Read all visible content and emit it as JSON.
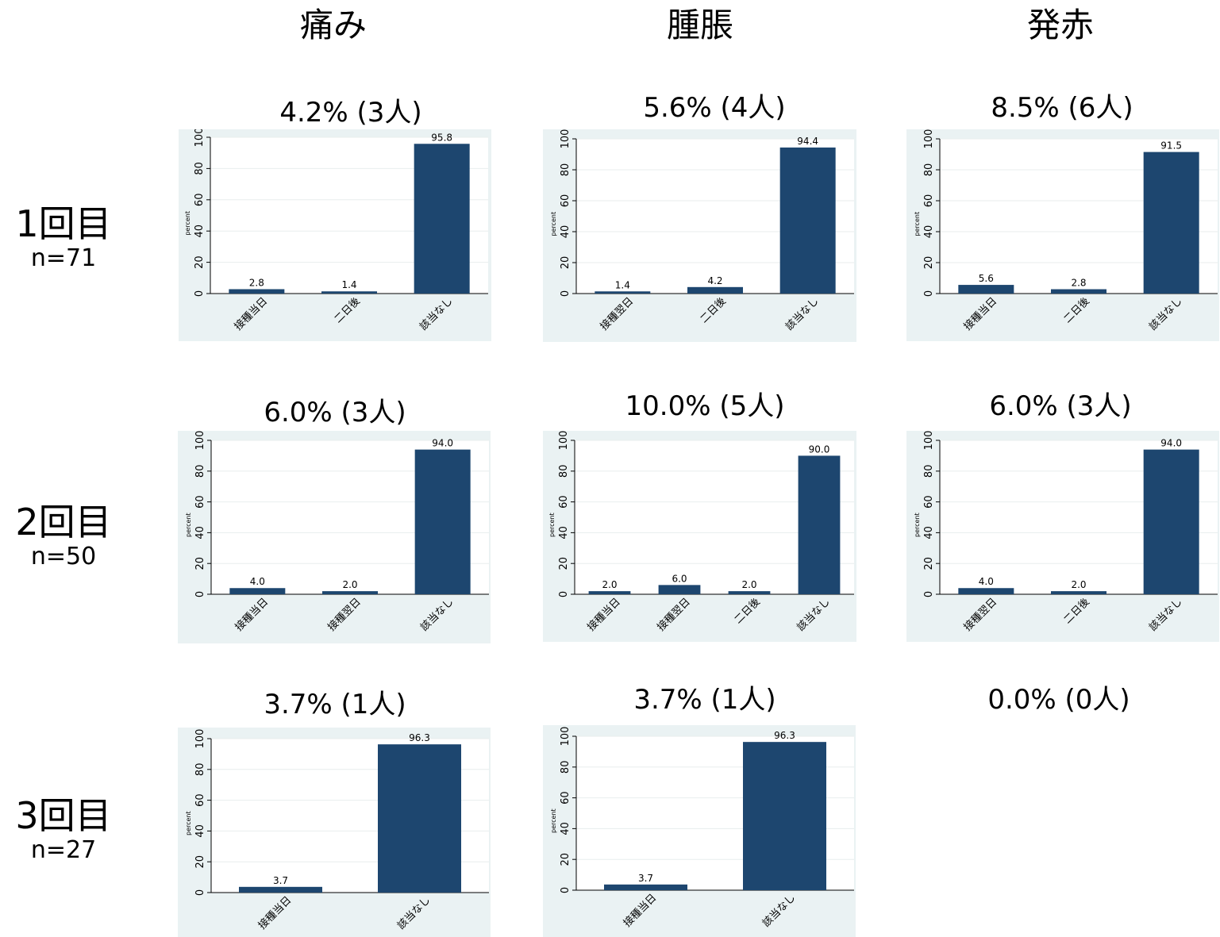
{
  "columns": [
    "痛み",
    "腫脹",
    "発赤"
  ],
  "rows": [
    {
      "dose": "1回目",
      "n": "n=71"
    },
    {
      "dose": "2回目",
      "n": "n=50"
    },
    {
      "dose": "3回目",
      "n": "n=27"
    }
  ],
  "rates": [
    [
      "4.2% (3人)",
      "5.6% (4人)",
      "8.5% (6人)"
    ],
    [
      "6.0% (3人)",
      "10.0% (5人)",
      "6.0% (3人)"
    ],
    [
      "3.7% (1人)",
      "3.7% (1人)",
      "0.0% (0人)"
    ]
  ],
  "colors": {
    "bar": "#1d466f",
    "panel_bg": "#eaf2f3",
    "grid": "#e8eeee"
  },
  "chart_data": [
    {
      "type": "bar",
      "id": "r1c1",
      "ylabel": "percent",
      "ylim": [
        0,
        100
      ],
      "yticks": [
        0,
        20,
        40,
        60,
        80,
        100
      ],
      "categories": [
        "接種当日",
        "二日後",
        "該当なし"
      ],
      "values": [
        2.8,
        1.4,
        95.8
      ],
      "labels": [
        "2.8",
        "1.4",
        "95.8"
      ]
    },
    {
      "type": "bar",
      "id": "r1c2",
      "ylabel": "percent",
      "ylim": [
        0,
        100
      ],
      "yticks": [
        0,
        20,
        40,
        60,
        80,
        100
      ],
      "categories": [
        "接種翌日",
        "二日後",
        "該当なし"
      ],
      "values": [
        1.4,
        4.2,
        94.4
      ],
      "labels": [
        "1.4",
        "4.2",
        "94.4"
      ]
    },
    {
      "type": "bar",
      "id": "r1c3",
      "ylabel": "percent",
      "ylim": [
        0,
        100
      ],
      "yticks": [
        0,
        20,
        40,
        60,
        80,
        100
      ],
      "categories": [
        "接種当日",
        "二日後",
        "該当なし"
      ],
      "values": [
        5.6,
        2.8,
        91.5
      ],
      "labels": [
        "5.6",
        "2.8",
        "91.5"
      ]
    },
    {
      "type": "bar",
      "id": "r2c1",
      "ylabel": "percent",
      "ylim": [
        0,
        100
      ],
      "yticks": [
        0,
        20,
        40,
        60,
        80,
        100
      ],
      "categories": [
        "接種当日",
        "接種翌日",
        "該当なし"
      ],
      "values": [
        4.0,
        2.0,
        94.0
      ],
      "labels": [
        "4.0",
        "2.0",
        "94.0"
      ]
    },
    {
      "type": "bar",
      "id": "r2c2",
      "ylabel": "percent",
      "ylim": [
        0,
        100
      ],
      "yticks": [
        0,
        20,
        40,
        60,
        80,
        100
      ],
      "categories": [
        "接種当日",
        "接種翌日",
        "二日後",
        "該当なし"
      ],
      "values": [
        2.0,
        6.0,
        2.0,
        90.0
      ],
      "labels": [
        "2.0",
        "6.0",
        "2.0",
        "90.0"
      ]
    },
    {
      "type": "bar",
      "id": "r2c3",
      "ylabel": "percent",
      "ylim": [
        0,
        100
      ],
      "yticks": [
        0,
        20,
        40,
        60,
        80,
        100
      ],
      "categories": [
        "接種翌日",
        "二日後",
        "該当なし"
      ],
      "values": [
        4.0,
        2.0,
        94.0
      ],
      "labels": [
        "4.0",
        "2.0",
        "94.0"
      ]
    },
    {
      "type": "bar",
      "id": "r3c1",
      "ylabel": "percent",
      "ylim": [
        0,
        100
      ],
      "yticks": [
        0,
        20,
        40,
        60,
        80,
        100
      ],
      "categories": [
        "接種当日",
        "該当なし"
      ],
      "values": [
        3.7,
        96.3
      ],
      "labels": [
        "3.7",
        "96.3"
      ]
    },
    {
      "type": "bar",
      "id": "r3c2",
      "ylabel": "percent",
      "ylim": [
        0,
        100
      ],
      "yticks": [
        0,
        20,
        40,
        60,
        80,
        100
      ],
      "categories": [
        "接種当日",
        "該当なし"
      ],
      "values": [
        3.7,
        96.3
      ],
      "labels": [
        "3.7",
        "96.3"
      ]
    }
  ]
}
